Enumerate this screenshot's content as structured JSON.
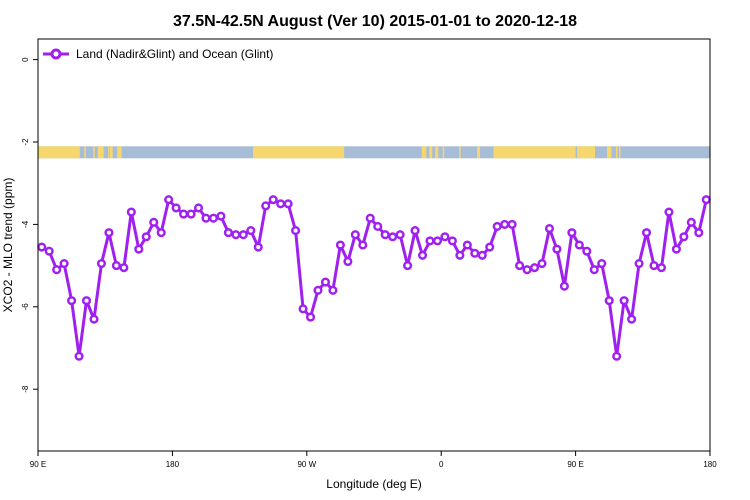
{
  "chart_data": {
    "type": "line",
    "title": "37.5N-42.5N August (Ver 10)   2015-01-01 to 2020-12-18",
    "xlabel": "Longitude (deg E)",
    "ylabel": "XCO2 - MLO trend (ppm)",
    "xlim": [
      90,
      540
    ],
    "ylim": [
      -9.5,
      0.5
    ],
    "x_ticks": [
      {
        "value": 90,
        "label": "90 E"
      },
      {
        "value": 180,
        "label": "180"
      },
      {
        "value": 270,
        "label": "90 W"
      },
      {
        "value": 360,
        "label": "0"
      },
      {
        "value": 450,
        "label": "90 E"
      },
      {
        "value": 540,
        "label": "180"
      }
    ],
    "y_ticks": [
      {
        "value": 0,
        "label": "0"
      },
      {
        "value": -2,
        "label": "-2"
      },
      {
        "value": -4,
        "label": "-4"
      },
      {
        "value": -6,
        "label": "-6"
      },
      {
        "value": -8,
        "label": "-8"
      }
    ],
    "legend": {
      "position": "top-left"
    },
    "grid": false,
    "series": [
      {
        "name": "Land (Nadir&Glint) and Ocean (Glint)",
        "color": "#a020f0",
        "x": [
          92.5,
          97.5,
          102.5,
          107.5,
          112.5,
          117.5,
          122.5,
          127.5,
          132.5,
          137.5,
          142.5,
          147.5,
          152.5,
          157.5,
          162.5,
          167.5,
          172.5,
          177.5,
          182.5,
          187.5,
          192.5,
          197.5,
          202.5,
          207.5,
          212.5,
          217.5,
          222.5,
          227.5,
          232.5,
          237.5,
          242.5,
          247.5,
          252.5,
          257.5,
          262.5,
          267.5,
          272.5,
          277.5,
          282.5,
          287.5,
          292.5,
          297.5,
          302.5,
          307.5,
          312.5,
          317.5,
          322.5,
          327.5,
          332.5,
          337.5,
          342.5,
          347.5,
          352.5,
          357.5,
          362.5,
          367.5,
          372.5,
          377.5,
          382.5,
          387.5,
          392.5,
          397.5,
          402.5,
          407.5,
          412.5,
          417.5,
          422.5,
          427.5,
          432.5,
          437.5,
          442.5,
          447.5,
          452.5,
          457.5,
          462.5,
          467.5,
          472.5,
          477.5,
          482.5,
          487.5,
          492.5,
          497.5,
          502.5,
          507.5,
          512.5,
          517.5,
          522.5,
          527.5,
          532.5,
          537.5
        ],
        "values": [
          -4.55,
          -4.65,
          -5.1,
          -4.95,
          -5.85,
          -7.2,
          -5.85,
          -6.3,
          -4.95,
          -4.2,
          -5.0,
          -5.05,
          -3.7,
          -4.6,
          -4.3,
          -3.95,
          -4.2,
          -3.4,
          -3.6,
          -3.75,
          -3.75,
          -3.6,
          -3.85,
          -3.85,
          -3.8,
          -4.2,
          -4.25,
          -4.25,
          -4.15,
          -4.55,
          -3.55,
          -3.4,
          -3.5,
          -3.5,
          -4.15,
          -6.05,
          -6.25,
          -5.6,
          -5.4,
          -5.6,
          -4.5,
          -4.9,
          -4.25,
          -4.5,
          -3.85,
          -4.05,
          -4.25,
          -4.3,
          -4.25,
          -5.0,
          -4.15,
          -4.75,
          -4.4,
          -4.4,
          -4.3,
          -4.4,
          -4.75,
          -4.5,
          -4.7,
          -4.75,
          -4.55,
          -4.05,
          -4.0,
          -4.0,
          -5.0,
          -5.1,
          -5.05,
          -4.95,
          -4.1,
          -4.6,
          -5.5,
          -4.2,
          -4.5,
          -4.65,
          -5.1,
          -4.95,
          -5.85,
          -7.2,
          -5.85,
          -6.3,
          -4.95,
          -4.2,
          -5.0,
          -5.05,
          -3.7,
          -4.6,
          -4.3,
          -3.95,
          -4.2,
          -3.4
        ]
      }
    ],
    "land_ocean_band": {
      "y_center": -2.25,
      "land_color": "#f5d76e",
      "ocean_color": "#a7bcd6",
      "land_ranges": [
        [
          90,
          118
        ],
        [
          121,
          122
        ],
        [
          127,
          128
        ],
        [
          130,
          134
        ],
        [
          137,
          137.5
        ],
        [
          138,
          140
        ],
        [
          143,
          146
        ],
        [
          234,
          295
        ],
        [
          347,
          350
        ],
        [
          352,
          354
        ],
        [
          356,
          358
        ],
        [
          361,
          362
        ],
        [
          372,
          373
        ],
        [
          384,
          386
        ],
        [
          395,
          450
        ],
        [
          451,
          463
        ],
        [
          471,
          474
        ],
        [
          477,
          478
        ],
        [
          479,
          480
        ]
      ]
    }
  }
}
